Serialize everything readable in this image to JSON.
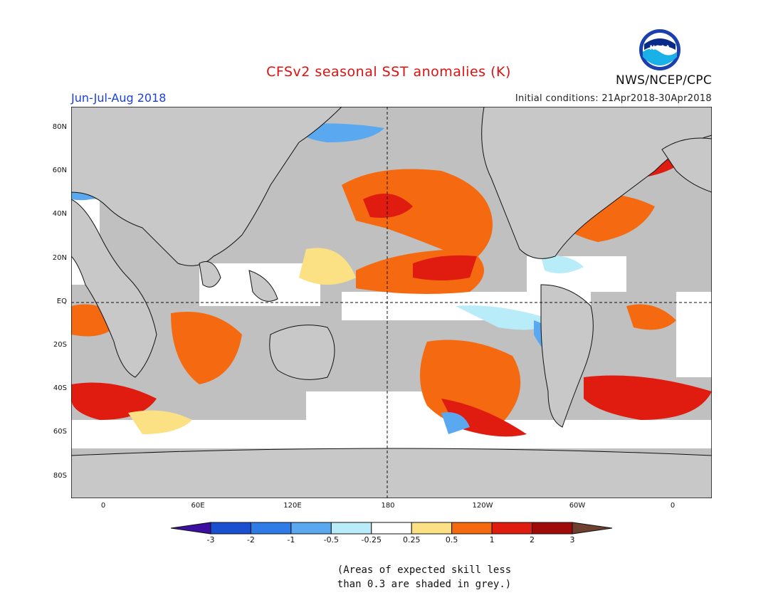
{
  "header": {
    "title": "CFSv2 seasonal SST anomalies (K)",
    "season": "Jun-Jul-Aug 2018",
    "initial_conditions": "Initial conditions: 21Apr2018-30Apr2018",
    "agency": "NWS/NCEP/CPC",
    "logo_text": "NOAA"
  },
  "map": {
    "lat_labels": [
      "80N",
      "60N",
      "40N",
      "20N",
      "EQ",
      "20S",
      "40S",
      "60S",
      "80S"
    ],
    "lon_labels": [
      "0",
      "60E",
      "120E",
      "180",
      "120W",
      "60W",
      "0"
    ],
    "land_color": "#c8c8c8",
    "skill_grey_color": "#c0c0c0"
  },
  "colorbar": {
    "labels": [
      "-3",
      "-2",
      "-1",
      "-0.5",
      "-0.25",
      "0.25",
      "0.5",
      "1",
      "2",
      "3"
    ],
    "colors": [
      "#3c0fa0",
      "#1a4fd0",
      "#2f7be8",
      "#5aa8f0",
      "#b8ecf8",
      "#ffffff",
      "#fce084",
      "#f56a10",
      "#e01c10",
      "#a00a08",
      "#6e4030"
    ]
  },
  "footnote": {
    "line1": "(Areas of expected skill less",
    "line2": "than 0.3 are shaded in grey.)"
  }
}
